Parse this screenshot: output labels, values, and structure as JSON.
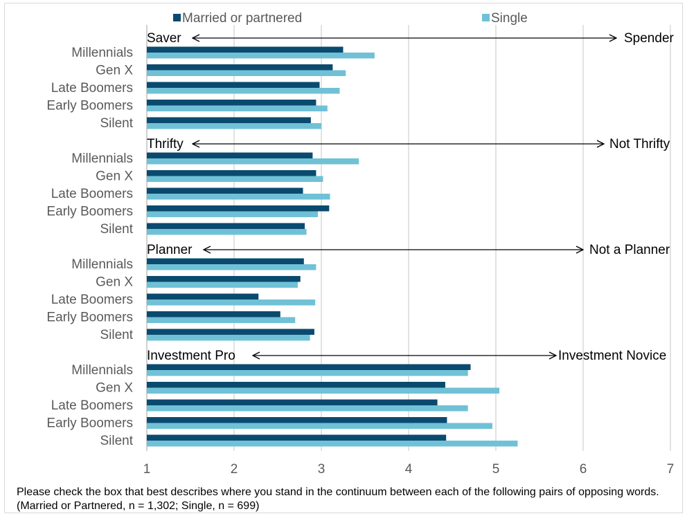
{
  "chart_data": {
    "type": "bar",
    "orientation": "horizontal",
    "legend": {
      "placement": "top",
      "entries": [
        {
          "label": "Married or partnered",
          "color": "#0b4a6f"
        },
        {
          "label": "Single",
          "color": "#70c1d6"
        }
      ]
    },
    "xlim": [
      1,
      7
    ],
    "x_ticks": [
      "1",
      "2",
      "3",
      "4",
      "5",
      "6",
      "7"
    ],
    "grid": true,
    "groups": [
      {
        "left_label": "Saver",
        "right_label": "Spender",
        "categories": [
          "Millennials",
          "Gen X",
          "Late Boomers",
          "Early Boomers",
          "Silent"
        ],
        "series": [
          {
            "name": "Married or partnered",
            "values": [
              3.25,
              3.13,
              2.98,
              2.94,
              2.88
            ]
          },
          {
            "name": "Single",
            "values": [
              3.61,
              3.28,
              3.21,
              3.07,
              3.0
            ]
          }
        ]
      },
      {
        "left_label": "Thrifty",
        "right_label": "Not Thrifty",
        "categories": [
          "Millennials",
          "Gen X",
          "Late Boomers",
          "Early Boomers",
          "Silent"
        ],
        "series": [
          {
            "name": "Married or partnered",
            "values": [
              2.9,
              2.94,
              2.79,
              3.09,
              2.81
            ]
          },
          {
            "name": "Single",
            "values": [
              3.43,
              3.02,
              3.1,
              2.96,
              2.83
            ]
          }
        ]
      },
      {
        "left_label": "Planner",
        "right_label": "Not a Planner",
        "categories": [
          "Millennials",
          "Gen X",
          "Late Boomers",
          "Early Boomers",
          "Silent"
        ],
        "series": [
          {
            "name": "Married or partnered",
            "values": [
              2.8,
              2.76,
              2.28,
              2.53,
              2.92
            ]
          },
          {
            "name": "Single",
            "values": [
              2.94,
              2.73,
              2.93,
              2.7,
              2.87
            ]
          }
        ]
      },
      {
        "left_label": "Investment Pro",
        "right_label": "Investment Novice",
        "categories": [
          "Millennials",
          "Gen X",
          "Late Boomers",
          "Early Boomers",
          "Silent"
        ],
        "series": [
          {
            "name": "Married or partnered",
            "values": [
              4.71,
              4.42,
              4.33,
              4.44,
              4.43
            ]
          },
          {
            "name": "Single",
            "values": [
              4.68,
              5.04,
              4.68,
              4.96,
              5.25
            ]
          }
        ]
      }
    ]
  },
  "footnote": "Please check the box that best describes where you stand in the continuum between each of the following pairs of opposing words. (Married or Partnered, n = 1,302; Single, n = 699)"
}
